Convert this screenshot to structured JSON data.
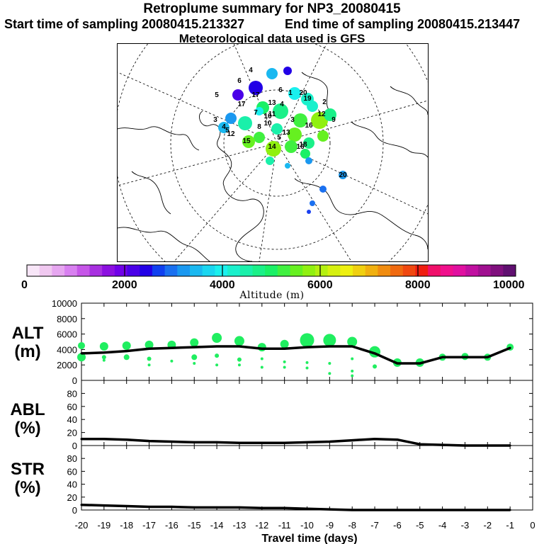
{
  "titles": {
    "main": "Retroplume summary for NP3_20080415",
    "start": "Start time of sampling 20080415.213327",
    "end": "End time of sampling 20080415.213447",
    "met": "Meteorological data used is GFS"
  },
  "map": {
    "labels": [
      "6",
      "4",
      "6",
      "5",
      "5",
      "4",
      "3",
      "17",
      "13",
      "11",
      "10",
      "1",
      "20",
      "12",
      "9",
      "2",
      "3",
      "4",
      "5",
      "17",
      "16",
      "15",
      "14",
      "13",
      "12",
      "16",
      "18",
      "10",
      "8",
      "7",
      "19",
      "20"
    ]
  },
  "colorbar": {
    "label": "Altitude (m)",
    "ticks": [
      "0",
      "2000",
      "4000",
      "6000",
      "8000",
      "10000"
    ],
    "colors": [
      "#f8e6f8",
      "#f0c8f0",
      "#e6a6f0",
      "#d880f0",
      "#c656e8",
      "#a830e0",
      "#8c10e0",
      "#7000e8",
      "#4a00e8",
      "#2200e6",
      "#1040f0",
      "#1a70f0",
      "#1a98f0",
      "#1ab8f0",
      "#1ad6f0",
      "#1af0ee",
      "#1af0cc",
      "#1af0aa",
      "#1af088",
      "#1af066",
      "#40f040",
      "#66f020",
      "#90f010",
      "#b4f010",
      "#d6f010",
      "#eef010",
      "#f0d010",
      "#f0b010",
      "#f08c10",
      "#f06a10",
      "#f04810",
      "#f01e10",
      "#f0106a",
      "#f0108c",
      "#e010a0",
      "#c010a0",
      "#a01090",
      "#80107e",
      "#601070"
    ]
  },
  "panels": {
    "alt": {
      "label1": "ALT",
      "label2": "(m)",
      "yticks": [
        "0",
        "2000",
        "4000",
        "6000",
        "8000",
        "10000"
      ]
    },
    "abl": {
      "label1": "ABL",
      "label2": "(%)",
      "yticks": [
        "0",
        "20",
        "40",
        "60",
        "80"
      ]
    },
    "str": {
      "label1": "STR",
      "label2": "(%)",
      "yticks": [
        "0",
        "20",
        "40",
        "60",
        "80"
      ]
    }
  },
  "chart_data": {
    "type": "line",
    "title": "Retroplume summary for NP3_20080415",
    "xlabel": "Travel time (days)",
    "x": [
      -20,
      -19,
      -18,
      -17,
      -16,
      -15,
      -14,
      -13,
      -12,
      -11,
      -10,
      -9,
      -8,
      -7,
      -6,
      -5,
      -4,
      -3,
      -2,
      -1
    ],
    "xticks": [
      "-20",
      "-19",
      "-18",
      "-17",
      "-16",
      "-15",
      "-14",
      "-13",
      "-12",
      "-11",
      "-10",
      "-9",
      "-8",
      "-7",
      "-6",
      "-5",
      "-4",
      "-3",
      "-2",
      "-1",
      "0"
    ],
    "xlim": [
      -20,
      0
    ],
    "series": [
      {
        "name": "ALT",
        "ylabel": "(m)",
        "ylim": [
          0,
          10000
        ],
        "values": [
          3500,
          3600,
          3800,
          4100,
          4200,
          4300,
          4400,
          4400,
          4100,
          4100,
          4300,
          4400,
          4400,
          3500,
          2200,
          2200,
          3000,
          3000,
          3000,
          4200
        ]
      },
      {
        "name": "ABL",
        "ylabel": "(%)",
        "ylim": [
          0,
          100
        ],
        "values": [
          10,
          10,
          9,
          7,
          6,
          5,
          5,
          4,
          4,
          4,
          5,
          6,
          8,
          10,
          9,
          2,
          1,
          0,
          0,
          0
        ]
      },
      {
        "name": "STR",
        "ylabel": "(%)",
        "ylim": [
          0,
          100
        ],
        "values": [
          8,
          7,
          6,
          5,
          5,
          4,
          4,
          4,
          3,
          3,
          2,
          1,
          0,
          0,
          0,
          0,
          0,
          0,
          0,
          0
        ]
      }
    ],
    "alt_clusters": [
      {
        "day": -20,
        "points": [
          [
            4500,
            5
          ],
          [
            3000,
            6
          ]
        ]
      },
      {
        "day": -19,
        "points": [
          [
            4400,
            6
          ],
          [
            3000,
            3
          ],
          [
            2600,
            2
          ]
        ]
      },
      {
        "day": -18,
        "points": [
          [
            4500,
            6
          ],
          [
            3000,
            4
          ]
        ]
      },
      {
        "day": -17,
        "points": [
          [
            4600,
            6
          ],
          [
            2800,
            3
          ],
          [
            2000,
            2
          ]
        ]
      },
      {
        "day": -16,
        "points": [
          [
            4600,
            6
          ],
          [
            2500,
            2
          ]
        ]
      },
      {
        "day": -15,
        "points": [
          [
            4900,
            6
          ],
          [
            3000,
            4
          ],
          [
            2200,
            2
          ]
        ]
      },
      {
        "day": -14,
        "points": [
          [
            5500,
            7
          ],
          [
            3200,
            3
          ],
          [
            2000,
            2
          ]
        ]
      },
      {
        "day": -13,
        "points": [
          [
            5100,
            7
          ],
          [
            2700,
            3
          ],
          [
            2000,
            2
          ]
        ]
      },
      {
        "day": -12,
        "points": [
          [
            4300,
            6
          ],
          [
            2800,
            2
          ],
          [
            1700,
            2
          ]
        ]
      },
      {
        "day": -11,
        "points": [
          [
            4700,
            6
          ],
          [
            2400,
            2
          ],
          [
            1700,
            2
          ]
        ]
      },
      {
        "day": -10,
        "points": [
          [
            5200,
            10
          ],
          [
            2300,
            2
          ],
          [
            1600,
            2
          ]
        ]
      },
      {
        "day": -9,
        "points": [
          [
            5200,
            9
          ],
          [
            2200,
            2
          ],
          [
            900,
            2
          ]
        ]
      },
      {
        "day": -8,
        "points": [
          [
            5000,
            7
          ],
          [
            2800,
            2
          ],
          [
            1200,
            2
          ],
          [
            600,
            2
          ]
        ]
      },
      {
        "day": -7,
        "points": [
          [
            3700,
            8
          ],
          [
            1800,
            3
          ]
        ]
      },
      {
        "day": -6,
        "points": [
          [
            2300,
            6
          ]
        ]
      },
      {
        "day": -5,
        "points": [
          [
            2300,
            6
          ]
        ]
      },
      {
        "day": -4,
        "points": [
          [
            3000,
            5
          ]
        ]
      },
      {
        "day": -3,
        "points": [
          [
            3100,
            5
          ]
        ]
      },
      {
        "day": -2,
        "points": [
          [
            3000,
            5
          ]
        ]
      },
      {
        "day": -1,
        "points": [
          [
            4300,
            5
          ]
        ]
      }
    ]
  }
}
